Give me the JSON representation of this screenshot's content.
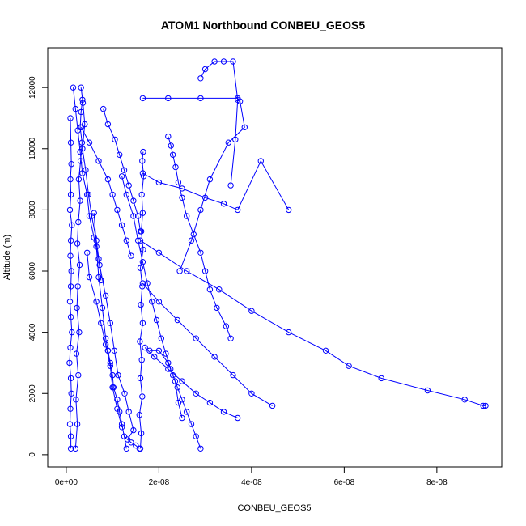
{
  "chart_data": {
    "type": "scatter",
    "title": "ATOM1 Northbound CONBEU_GEOS5",
    "xlabel": "CONBEU_GEOS5",
    "ylabel": "Altitude (m)",
    "xlim": [
      -4e-09,
      9.4e-08
    ],
    "ylim": [
      -400,
      13300
    ],
    "xticks": [
      {
        "value": 0,
        "label": "0e+00"
      },
      {
        "value": 2e-08,
        "label": "2e-08"
      },
      {
        "value": 4e-08,
        "label": "4e-08"
      },
      {
        "value": 6e-08,
        "label": "6e-08"
      },
      {
        "value": 8e-08,
        "label": "8e-08"
      }
    ],
    "yticks": [
      {
        "value": 0,
        "label": "0"
      },
      {
        "value": 2000,
        "label": "2000"
      },
      {
        "value": 4000,
        "label": "4000"
      },
      {
        "value": 6000,
        "label": "6000"
      },
      {
        "value": 8000,
        "label": "8000"
      },
      {
        "value": 10000,
        "label": "10000"
      },
      {
        "value": 12000,
        "label": "12000"
      }
    ],
    "grid": false,
    "color": "#0000ff",
    "marker": "open-circle",
    "series": [
      {
        "x": [
          1e-09,
          1e-09,
          8e-10,
          9e-10,
          1.1e-09,
          1e-09,
          7e-10,
          9e-10,
          1.2e-09,
          1e-09,
          8e-10,
          1e-09,
          1.1e-09,
          9e-10,
          1e-09,
          1.2e-09,
          8e-10,
          1e-09,
          9e-10,
          1.1e-09,
          1e-09,
          9e-10
        ],
        "y": [
          200,
          600,
          1000,
          1500,
          2000,
          2500,
          3000,
          3500,
          4000,
          4500,
          5000,
          5500,
          6000,
          6500,
          7000,
          7500,
          8000,
          8500,
          9000,
          9500,
          10200,
          11000
        ]
      },
      {
        "x": [
          2e-09,
          2.4e-09,
          2.1e-09,
          2.6e-09,
          2.2e-09,
          2.8e-09,
          2.3e-09,
          2.5e-09,
          2.9e-09,
          2.4e-09,
          2.6e-09,
          3e-09,
          2.7e-09,
          3.1e-09,
          3.4e-09,
          3e-09,
          3.2e-09,
          3.5e-09
        ],
        "y": [
          200,
          1000,
          1800,
          2600,
          3300,
          4000,
          4800,
          5500,
          6200,
          6900,
          7600,
          8300,
          9000,
          9600,
          10200,
          10700,
          11200,
          11600
        ]
      },
      {
        "x": [
          3.2e-09,
          3.6e-09,
          4e-09,
          3.5e-09,
          4.2e-09,
          4.8e-09,
          5.5e-09,
          6.5e-09,
          7.2e-09,
          8.5e-09,
          9.5e-09,
          1.04e-08,
          1.12e-08,
          1.26e-08,
          1.35e-08,
          1.45e-08,
          1.32e-08,
          1.4e-08,
          1.5e-08,
          1.58e-08
        ],
        "y": [
          12000,
          11500,
          10800,
          10000,
          9300,
          8500,
          7800,
          7000,
          6200,
          5200,
          4300,
          3400,
          2600,
          2000,
          1400,
          800,
          500,
          400,
          300,
          200
        ]
      },
      {
        "x": [
          1.6e-08,
          1.62e-08,
          1.58e-08,
          1.64e-08,
          1.6e-08,
          1.63e-08,
          1.59e-08,
          1.65e-08,
          1.61e-08,
          1.64e-08,
          1.6e-08,
          1.66e-08,
          1.62e-08,
          1.65e-08,
          1.63e-08,
          1.67e-08,
          1.64e-08,
          1.66e-08
        ],
        "y": [
          200,
          700,
          1300,
          1900,
          2500,
          3100,
          3700,
          4300,
          4900,
          5500,
          6100,
          6700,
          7300,
          7900,
          8500,
          9100,
          9600,
          9900
        ]
      },
      {
        "x": [
          1.2e-08,
          1.3e-08,
          1.45e-08,
          1.55e-08,
          1.65e-08,
          1.75e-08,
          1.85e-08,
          1.95e-08,
          2.05e-08,
          2.15e-08,
          2.25e-08,
          2.35e-08,
          2.42e-08,
          2.5e-08
        ],
        "y": [
          9100,
          8500,
          7800,
          7000,
          6300,
          5600,
          5000,
          4400,
          3800,
          3300,
          2800,
          2400,
          1700,
          1200
        ]
      },
      {
        "x": [
          3.2e-09,
          5e-09,
          7e-09,
          9e-09,
          1e-08,
          1.1e-08,
          1.2e-08,
          1.3e-08,
          1.4e-08
        ],
        "y": [
          10700,
          10200,
          9600,
          9000,
          8500,
          8000,
          7500,
          7000,
          6500
        ]
      },
      {
        "x": [
          2.2e-08,
          2.26e-08,
          2.3e-08,
          2.36e-08,
          2.42e-08,
          2.5e-08,
          2.6e-08,
          2.75e-08,
          2.9e-08,
          3e-08,
          3.1e-08,
          3.25e-08,
          3.45e-08,
          3.55e-08
        ],
        "y": [
          10400,
          10100,
          9800,
          9400,
          8900,
          8400,
          7800,
          7200,
          6600,
          6000,
          5400,
          4800,
          4200,
          3800
        ]
      },
      {
        "x": [
          1.65e-08,
          2e-08,
          2.5e-08,
          3e-08,
          3.4e-08,
          3.7e-08,
          4.2e-08,
          4.8e-08
        ],
        "y": [
          9200,
          8900,
          8700,
          8400,
          8200,
          8000,
          9600,
          8000
        ]
      },
      {
        "x": [
          1.65e-08,
          2.2e-08,
          2.9e-08,
          3.7e-08,
          3.75e-08,
          3.85e-08,
          3.5e-08,
          3.1e-08,
          2.9e-08,
          2.7e-08,
          2.45e-08
        ],
        "y": [
          11650,
          11650,
          11650,
          11650,
          11550,
          10700,
          10200,
          9000,
          8000,
          7000,
          6000
        ]
      },
      {
        "x": [
          2.9e-08,
          3e-08,
          3.2e-08,
          3.4e-08,
          3.6e-08,
          3.7e-08,
          3.65e-08,
          3.55e-08
        ],
        "y": [
          12300,
          12600,
          12850,
          12850,
          12850,
          11600,
          10300,
          8800
        ]
      },
      {
        "x": [
          1.6e-08,
          2e-08,
          2.6e-08,
          3.3e-08,
          4e-08,
          4.8e-08,
          5.6e-08,
          6.1e-08,
          6.8e-08,
          7.8e-08,
          8.6e-08,
          9e-08,
          9.05e-08
        ],
        "y": [
          7000,
          6600,
          6000,
          5400,
          4700,
          4000,
          3400,
          2900,
          2500,
          2100,
          1800,
          1600,
          1600
        ]
      },
      {
        "x": [
          1.65e-08,
          2e-08,
          2.4e-08,
          2.8e-08,
          3.2e-08,
          3.6e-08,
          4e-08,
          4.45e-08
        ],
        "y": [
          5600,
          5000,
          4400,
          3800,
          3200,
          2600,
          2000,
          1600
        ]
      },
      {
        "x": [
          1.7e-08,
          1.9e-08,
          2.2e-08,
          2.5e-08,
          2.8e-08,
          3.1e-08,
          3.4e-08,
          3.7e-08
        ],
        "y": [
          3500,
          3200,
          2800,
          2400,
          2000,
          1700,
          1400,
          1200
        ]
      },
      {
        "x": [
          2.9e-08,
          2.8e-08,
          2.7e-08,
          2.6e-08,
          2.5e-08,
          2.4e-08,
          2.3e-08,
          2.2e-08,
          2e-08,
          1.8e-08
        ],
        "y": [
          200,
          600,
          1000,
          1400,
          1800,
          2200,
          2600,
          3000,
          3400,
          3400
        ]
      },
      {
        "x": [
          9e-09,
          9.5e-09,
          1e-08,
          1.02e-08,
          1.1e-08,
          1.15e-08,
          1.2e-08,
          1.25e-08,
          1.3e-08
        ],
        "y": [
          3400,
          3000,
          2600,
          2200,
          1800,
          1400,
          1000,
          600,
          200
        ]
      },
      {
        "x": [
          6e-09,
          6.5e-09,
          7e-09,
          7.8e-09,
          8.5e-09,
          9e-09
        ],
        "y": [
          7900,
          6800,
          5800,
          4800,
          3800,
          3400
        ]
      },
      {
        "x": [
          1.5e-09,
          2e-09,
          2.5e-09,
          3e-09,
          3.5e-09,
          4.5e-09,
          5e-09,
          6e-09,
          7e-09,
          7.5e-09
        ],
        "y": [
          12000,
          11300,
          10600,
          9900,
          9200,
          8500,
          7800,
          7100,
          6400,
          5700
        ]
      },
      {
        "x": [
          8e-09,
          9e-09,
          1.05e-08,
          1.15e-08,
          1.25e-08,
          1.35e-08,
          1.45e-08,
          1.55e-08,
          1.6e-08
        ],
        "y": [
          11300,
          10800,
          10300,
          9800,
          9300,
          8800,
          8300,
          7800,
          7300
        ]
      },
      {
        "x": [
          4.5e-09,
          5e-09,
          6.5e-09,
          7.5e-09,
          8.5e-09,
          9.5e-09,
          1e-08,
          1.1e-08,
          1.2e-08
        ],
        "y": [
          6600,
          5800,
          5000,
          4300,
          3600,
          2900,
          2200,
          1500,
          900
        ]
      }
    ]
  }
}
